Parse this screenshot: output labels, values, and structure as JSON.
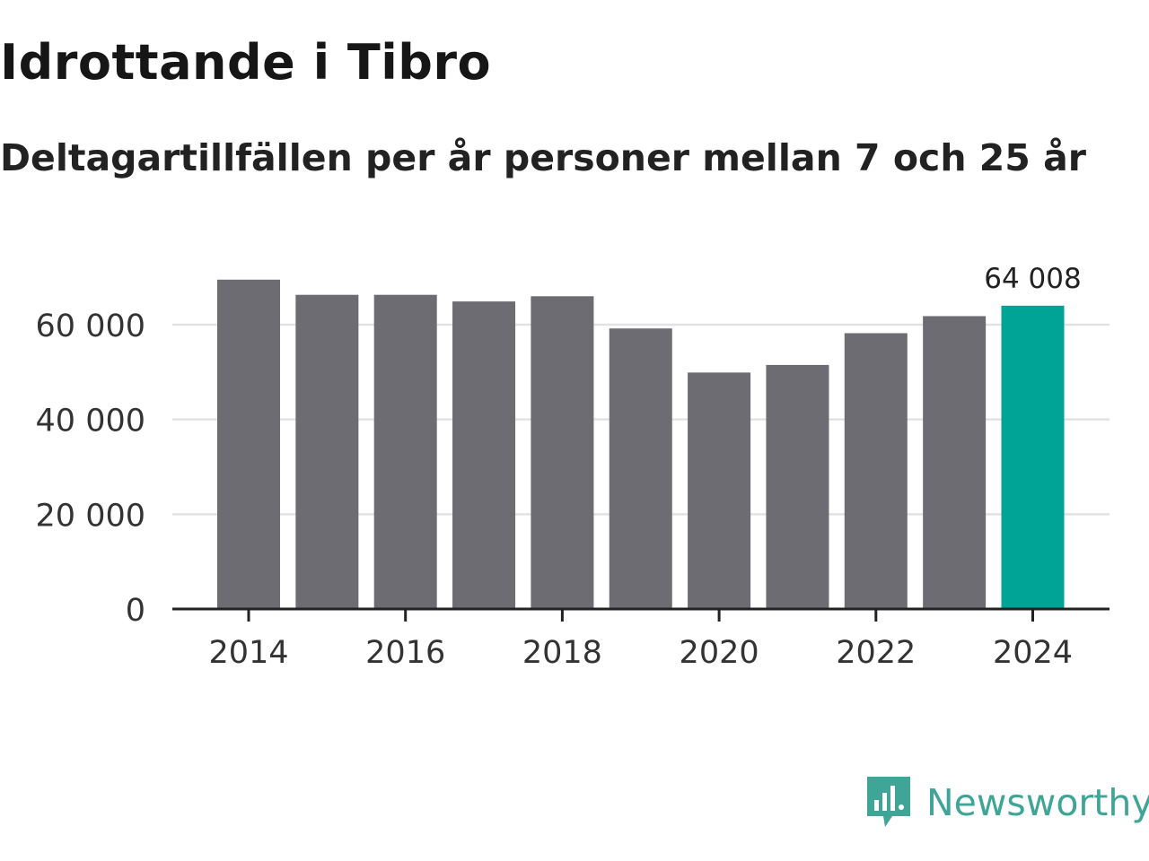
{
  "chart_data": {
    "type": "bar",
    "title": "Idrottande i Tibro",
    "subtitle": "Deltagartillfällen per år personer mellan 7 och 25 år",
    "categories": [
      "2014",
      "2015",
      "2016",
      "2017",
      "2018",
      "2019",
      "2020",
      "2021",
      "2022",
      "2023",
      "2024"
    ],
    "values": [
      69500,
      66300,
      66300,
      64900,
      66000,
      59200,
      49900,
      51500,
      58200,
      61800,
      64008
    ],
    "highlight_index": 10,
    "highlight_label": "64 008",
    "x_tick_labels": [
      "2014",
      "2016",
      "2018",
      "2020",
      "2022",
      "2024"
    ],
    "y_tick_values": [
      0,
      20000,
      40000,
      60000
    ],
    "y_tick_labels": [
      "0",
      "20 000",
      "40 000",
      "60 000"
    ],
    "ylim": [
      0,
      70000
    ],
    "xlabel": "",
    "ylabel": "",
    "grid": true,
    "colors": {
      "bar": "#6d6c73",
      "highlight": "#00a497",
      "grid": "#e2e2e2",
      "axis": "#222222",
      "tick_text": "#333333"
    }
  },
  "branding": {
    "name": "Newsworthy",
    "color": "#3fa596",
    "icon": "newsworthy-logo-icon"
  }
}
